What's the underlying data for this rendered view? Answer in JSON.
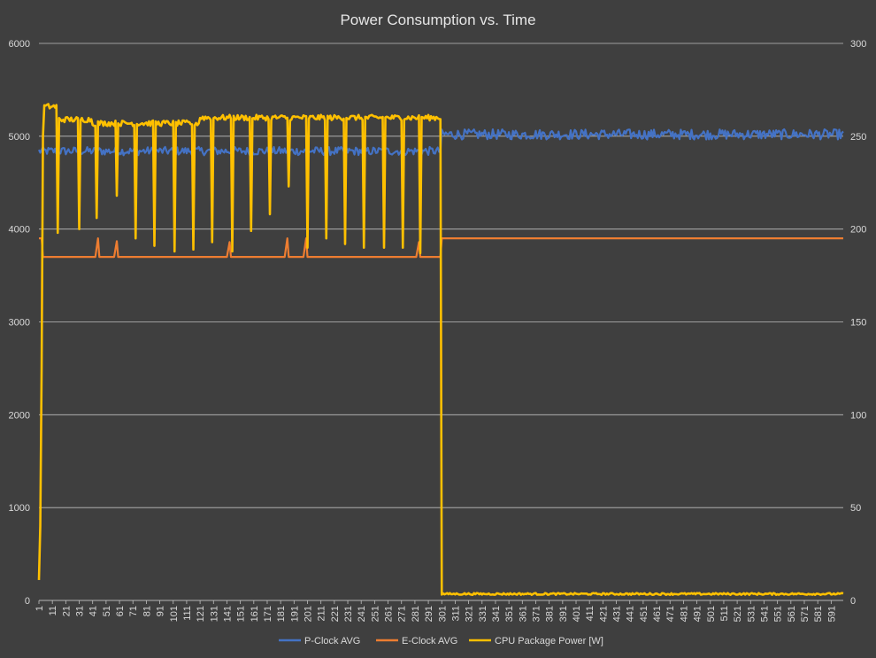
{
  "chart_data": {
    "type": "line",
    "title": "Power Consumption vs. Time",
    "xlabel": "",
    "ylabel": "",
    "y2label": "",
    "ylim": [
      0,
      6000
    ],
    "y2lim": [
      0,
      300
    ],
    "y_ticks": [
      "0",
      "1000",
      "2000",
      "3000",
      "4000",
      "5000",
      "6000"
    ],
    "y2_ticks": [
      "0",
      "50",
      "100",
      "150",
      "200",
      "250",
      "300"
    ],
    "x_range": [
      1,
      600
    ],
    "x_tick_labels": [
      "1",
      "11",
      "21",
      "31",
      "41",
      "51",
      "61",
      "71",
      "81",
      "91",
      "101",
      "111",
      "121",
      "131",
      "141",
      "151",
      "161",
      "171",
      "181",
      "191",
      "201",
      "211",
      "221",
      "231",
      "241",
      "251",
      "261",
      "271",
      "281",
      "291",
      "301",
      "311",
      "321",
      "331",
      "341",
      "351",
      "361",
      "371",
      "381",
      "391",
      "401",
      "411",
      "421",
      "431",
      "441",
      "451",
      "461",
      "471",
      "481",
      "491",
      "501",
      "511",
      "521",
      "531",
      "541",
      "551",
      "561",
      "571",
      "581",
      "591"
    ],
    "grid": true,
    "legend_position": "bottom",
    "series": [
      {
        "name": "P-Clock AVG",
        "axis": "left",
        "color": "#4472c4",
        "segments": [
          {
            "from": 1,
            "to": 300,
            "base": 4840,
            "noise": 45
          },
          {
            "from": 301,
            "to": 600,
            "base": 5020,
            "noise": 55
          }
        ]
      },
      {
        "name": "E-Clock AVG",
        "axis": "left",
        "color": "#ed7d31",
        "segments": [
          {
            "from": 1,
            "to": 3,
            "base": 3900,
            "noise": 0
          },
          {
            "from": 4,
            "to": 300,
            "base": 3700,
            "noise": 0
          },
          {
            "from": 301,
            "to": 600,
            "base": 3900,
            "noise": 0
          }
        ],
        "spikes": [
          {
            "x": 45,
            "y": 3900
          },
          {
            "x": 59,
            "y": 3870
          },
          {
            "x": 143,
            "y": 3860
          },
          {
            "x": 186,
            "y": 3900
          },
          {
            "x": 200,
            "y": 3900
          },
          {
            "x": 284,
            "y": 3860
          }
        ]
      },
      {
        "name": "CPU Package Power [W]",
        "axis": "right",
        "color": "#ffc000",
        "segments": [
          {
            "from": 1,
            "to": 1,
            "base": 11,
            "noise": 0
          },
          {
            "from": 2,
            "to": 2,
            "base": 40,
            "noise": 0
          },
          {
            "from": 3,
            "to": 3,
            "base": 125,
            "noise": 0
          },
          {
            "from": 4,
            "to": 4,
            "base": 250,
            "noise": 0
          },
          {
            "from": 5,
            "to": 15,
            "base": 266,
            "noise": 1.5
          },
          {
            "from": 16,
            "to": 40,
            "base": 259,
            "noise": 1.5
          },
          {
            "from": 41,
            "to": 120,
            "base": 257,
            "noise": 1.5
          },
          {
            "from": 121,
            "to": 300,
            "base": 260,
            "noise": 1.5
          },
          {
            "from": 301,
            "to": 600,
            "base": 3.5,
            "noise": 0.5
          }
        ],
        "dips": [
          {
            "x": 15,
            "y": 198
          },
          {
            "x": 31,
            "y": 200
          },
          {
            "x": 44,
            "y": 206
          },
          {
            "x": 59,
            "y": 218
          },
          {
            "x": 73,
            "y": 195
          },
          {
            "x": 87,
            "y": 191
          },
          {
            "x": 102,
            "y": 188
          },
          {
            "x": 116,
            "y": 189
          },
          {
            "x": 130,
            "y": 193
          },
          {
            "x": 145,
            "y": 188
          },
          {
            "x": 159,
            "y": 199
          },
          {
            "x": 173,
            "y": 208
          },
          {
            "x": 187,
            "y": 223
          },
          {
            "x": 201,
            "y": 190
          },
          {
            "x": 215,
            "y": 195
          },
          {
            "x": 229,
            "y": 192
          },
          {
            "x": 243,
            "y": 190
          },
          {
            "x": 258,
            "y": 190
          },
          {
            "x": 272,
            "y": 190
          },
          {
            "x": 285,
            "y": 187
          }
        ]
      }
    ]
  }
}
